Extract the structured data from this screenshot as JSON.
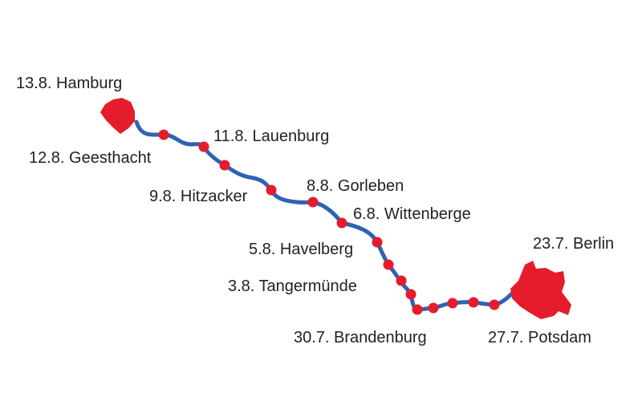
{
  "colors": {
    "route": "#2f62b5",
    "stop": "#e51c2b",
    "city": "#e51c2b",
    "text": "#222222",
    "background": "#ffffff"
  },
  "labels": {
    "hamburg": "13.8. Hamburg",
    "geesthacht": "12.8. Geesthacht",
    "lauenburg": "11.8. Lauenburg",
    "hitzacker": "9.8. Hitzacker",
    "gorleben": "8.8. Gorleben",
    "wittenberge": "6.8. Wittenberge",
    "havelberg": "5.8. Havelberg",
    "tangermuende": "3.8. Tangermünde",
    "brandenburg": "30.7. Brandenburg",
    "potsdam": "27.7. Potsdam",
    "berlin": "23.7. Berlin"
  }
}
